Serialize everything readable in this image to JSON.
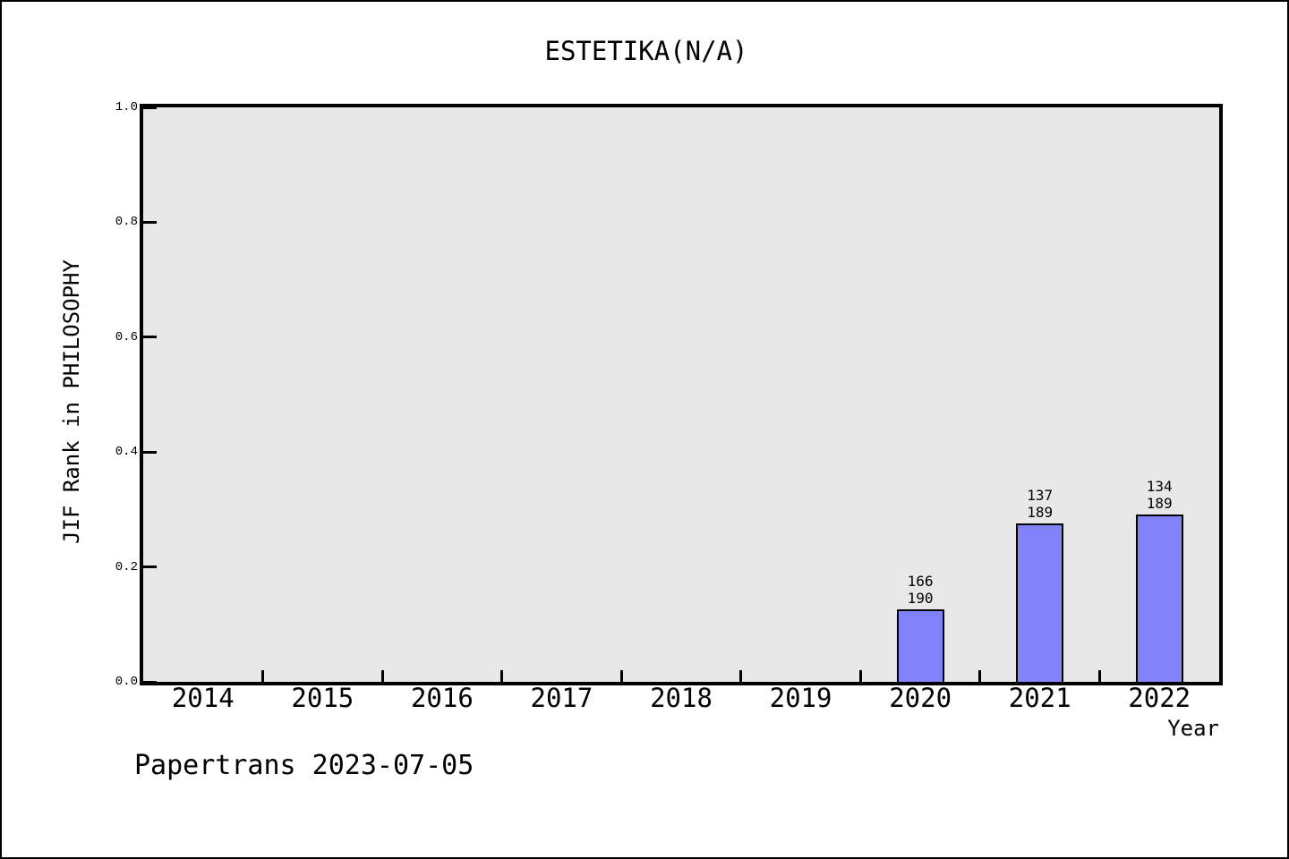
{
  "title": "ESTETIKA(N/A)",
  "footer": "Papertrans 2023-07-05",
  "chart_data": {
    "type": "bar",
    "title": "ESTETIKA(N/A)",
    "xlabel": "Year",
    "ylabel": "JIF Rank in PHILOSOPHY",
    "ylim": [
      0.0,
      1.0
    ],
    "y_ticks": [
      "0.0",
      "0.2",
      "0.4",
      "0.6",
      "0.8",
      "1.0"
    ],
    "categories": [
      "2014",
      "2015",
      "2016",
      "2017",
      "2018",
      "2019",
      "2020",
      "2021",
      "2022"
    ],
    "bars": [
      {
        "category": "2020",
        "rank": 166,
        "total": 190,
        "label_lines": [
          "166",
          "190"
        ],
        "height_fraction": 0.1263
      },
      {
        "category": "2021",
        "rank": 137,
        "total": 189,
        "label_lines": [
          "137",
          "189"
        ],
        "height_fraction": 0.2751
      },
      {
        "category": "2022",
        "rank": 134,
        "total": 189,
        "label_lines": [
          "134",
          "189"
        ],
        "height_fraction": 0.291
      }
    ],
    "grid": false,
    "legend": null,
    "colors": {
      "bar_fill": "#8282fa",
      "bar_edge": "#000000",
      "plot_background": "#e8e8e8",
      "frame": "#000000",
      "text": "#000000"
    }
  }
}
